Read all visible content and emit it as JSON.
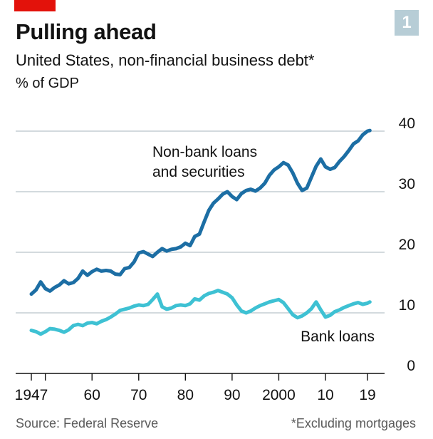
{
  "header": {
    "title": "Pulling ahead",
    "subtitle": "United States, non-financial business debt*",
    "unit": "% of GDP",
    "badge": "1"
  },
  "footer": {
    "source": "Source: Federal Reserve",
    "footnote": "*Excluding mortgages"
  },
  "colors": {
    "nonbank": "#1c6ea4",
    "bank": "#3ec1d3",
    "grid": "#b9c3c9",
    "accent": "#e3120b",
    "badge": "#b7cdd6"
  },
  "chart_data": {
    "type": "line",
    "xlim": [
      1946,
      2021
    ],
    "ylim": [
      0,
      40
    ],
    "y_ticks": [
      0,
      10,
      20,
      30,
      40
    ],
    "x_ticks": [
      {
        "value": 1947,
        "label": "1947"
      },
      {
        "value": 1950,
        "label": ""
      },
      {
        "value": 1960,
        "label": "60"
      },
      {
        "value": 1970,
        "label": "70"
      },
      {
        "value": 1980,
        "label": "80"
      },
      {
        "value": 1990,
        "label": "90"
      },
      {
        "value": 2000,
        "label": "2000"
      },
      {
        "value": 2010,
        "label": "10"
      },
      {
        "value": 2019,
        "label": "19"
      }
    ],
    "grid": true,
    "series": [
      {
        "name": "Non-bank loans and securities",
        "label_lines": [
          "Non-bank loans",
          "and securities"
        ],
        "values": [
          [
            1947,
            13.1
          ],
          [
            1948,
            13.8
          ],
          [
            1949,
            15.1
          ],
          [
            1950,
            14.0
          ],
          [
            1951,
            13.6
          ],
          [
            1952,
            14.2
          ],
          [
            1953,
            14.6
          ],
          [
            1954,
            15.3
          ],
          [
            1955,
            14.8
          ],
          [
            1956,
            15.0
          ],
          [
            1957,
            15.7
          ],
          [
            1958,
            16.9
          ],
          [
            1959,
            16.2
          ],
          [
            1960,
            16.8
          ],
          [
            1961,
            17.2
          ],
          [
            1962,
            16.9
          ],
          [
            1963,
            17.0
          ],
          [
            1964,
            16.9
          ],
          [
            1965,
            16.4
          ],
          [
            1966,
            16.3
          ],
          [
            1967,
            17.3
          ],
          [
            1968,
            17.5
          ],
          [
            1969,
            18.4
          ],
          [
            1970,
            19.9
          ],
          [
            1971,
            20.1
          ],
          [
            1972,
            19.7
          ],
          [
            1973,
            19.3
          ],
          [
            1974,
            20.0
          ],
          [
            1975,
            20.6
          ],
          [
            1976,
            20.2
          ],
          [
            1977,
            20.5
          ],
          [
            1978,
            20.6
          ],
          [
            1979,
            20.9
          ],
          [
            1980,
            21.5
          ],
          [
            1981,
            21.1
          ],
          [
            1982,
            22.6
          ],
          [
            1983,
            23.0
          ],
          [
            1984,
            25.0
          ],
          [
            1985,
            26.9
          ],
          [
            1986,
            28.1
          ],
          [
            1987,
            28.8
          ],
          [
            1988,
            29.6
          ],
          [
            1989,
            30.0
          ],
          [
            1990,
            29.2
          ],
          [
            1991,
            28.7
          ],
          [
            1992,
            29.7
          ],
          [
            1993,
            30.2
          ],
          [
            1994,
            30.4
          ],
          [
            1995,
            30.1
          ],
          [
            1996,
            30.6
          ],
          [
            1997,
            31.4
          ],
          [
            1998,
            32.7
          ],
          [
            1999,
            33.6
          ],
          [
            2000,
            34.1
          ],
          [
            2001,
            34.8
          ],
          [
            2002,
            34.4
          ],
          [
            2003,
            33.1
          ],
          [
            2004,
            31.4
          ],
          [
            2005,
            30.2
          ],
          [
            2006,
            30.6
          ],
          [
            2007,
            32.4
          ],
          [
            2008,
            34.2
          ],
          [
            2009,
            35.4
          ],
          [
            2010,
            34.1
          ],
          [
            2011,
            33.7
          ],
          [
            2012,
            34.0
          ],
          [
            2013,
            35.0
          ],
          [
            2014,
            35.8
          ],
          [
            2015,
            36.8
          ],
          [
            2016,
            37.9
          ],
          [
            2017,
            38.4
          ],
          [
            2018,
            39.4
          ],
          [
            2019,
            40.0
          ],
          [
            2019.5,
            40.1
          ]
        ]
      },
      {
        "name": "Bank loans",
        "label_lines": [
          "Bank loans"
        ],
        "values": [
          [
            1947,
            7.1
          ],
          [
            1948,
            6.9
          ],
          [
            1949,
            6.5
          ],
          [
            1950,
            6.9
          ],
          [
            1951,
            7.4
          ],
          [
            1952,
            7.3
          ],
          [
            1953,
            7.1
          ],
          [
            1954,
            6.8
          ],
          [
            1955,
            7.2
          ],
          [
            1956,
            7.9
          ],
          [
            1957,
            8.1
          ],
          [
            1958,
            7.9
          ],
          [
            1959,
            8.3
          ],
          [
            1960,
            8.4
          ],
          [
            1961,
            8.2
          ],
          [
            1962,
            8.6
          ],
          [
            1963,
            8.9
          ],
          [
            1964,
            9.3
          ],
          [
            1965,
            9.8
          ],
          [
            1966,
            10.4
          ],
          [
            1967,
            10.6
          ],
          [
            1968,
            10.8
          ],
          [
            1969,
            11.1
          ],
          [
            1970,
            11.3
          ],
          [
            1971,
            11.2
          ],
          [
            1972,
            11.4
          ],
          [
            1973,
            12.2
          ],
          [
            1974,
            13.1
          ],
          [
            1975,
            11.0
          ],
          [
            1976,
            10.6
          ],
          [
            1977,
            10.8
          ],
          [
            1978,
            11.2
          ],
          [
            1979,
            11.3
          ],
          [
            1980,
            11.2
          ],
          [
            1981,
            11.5
          ],
          [
            1982,
            12.3
          ],
          [
            1983,
            12.1
          ],
          [
            1984,
            12.8
          ],
          [
            1985,
            13.2
          ],
          [
            1986,
            13.4
          ],
          [
            1987,
            13.7
          ],
          [
            1988,
            13.4
          ],
          [
            1989,
            13.1
          ],
          [
            1990,
            12.5
          ],
          [
            1991,
            11.3
          ],
          [
            1992,
            10.3
          ],
          [
            1993,
            10.0
          ],
          [
            1994,
            10.3
          ],
          [
            1995,
            10.8
          ],
          [
            1996,
            11.2
          ],
          [
            1997,
            11.5
          ],
          [
            1998,
            11.8
          ],
          [
            1999,
            12.0
          ],
          [
            2000,
            12.2
          ],
          [
            2001,
            11.7
          ],
          [
            2002,
            10.7
          ],
          [
            2003,
            9.7
          ],
          [
            2004,
            9.2
          ],
          [
            2005,
            9.5
          ],
          [
            2006,
            10.0
          ],
          [
            2007,
            10.7
          ],
          [
            2008,
            11.8
          ],
          [
            2009,
            10.5
          ],
          [
            2010,
            9.3
          ],
          [
            2011,
            9.6
          ],
          [
            2012,
            10.2
          ],
          [
            2013,
            10.5
          ],
          [
            2014,
            10.9
          ],
          [
            2015,
            11.2
          ],
          [
            2016,
            11.5
          ],
          [
            2017,
            11.7
          ],
          [
            2018,
            11.4
          ],
          [
            2019,
            11.6
          ],
          [
            2019.5,
            11.8
          ]
        ]
      }
    ]
  }
}
